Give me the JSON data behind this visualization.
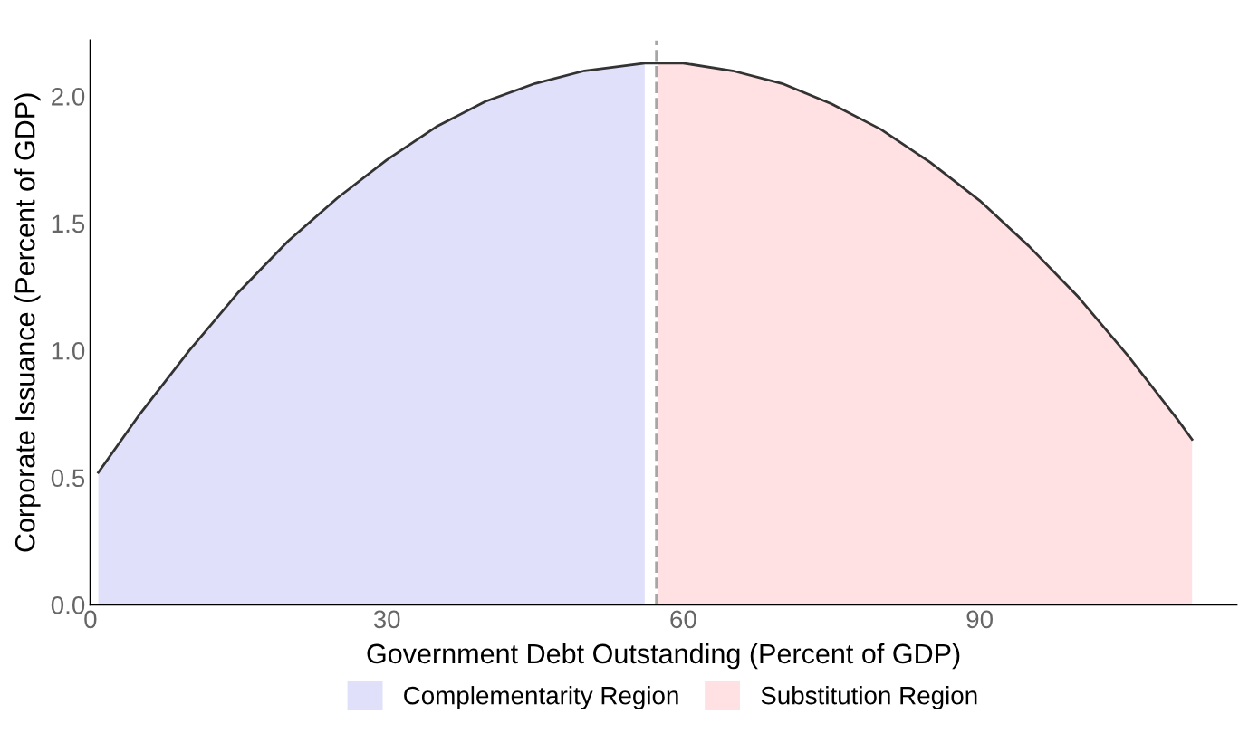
{
  "chart_data": {
    "type": "area",
    "xlabel": "Government Debt Outstanding (Percent of GDP)",
    "ylabel": "Corporate Issuance (Percent of GDP)",
    "series": [
      {
        "name": "Complementarity Region",
        "color": "#e0e0fb",
        "x": [
          0.8,
          5,
          10,
          15,
          20,
          25,
          30,
          35,
          40,
          45,
          50,
          56.1
        ],
        "values": [
          0.52,
          0.75,
          1.0,
          1.23,
          1.43,
          1.6,
          1.75,
          1.88,
          1.98,
          2.05,
          2.1,
          2.13
        ]
      },
      {
        "name": "Substitution Region",
        "color": "#ffe0e3",
        "x": [
          57.4,
          60,
          65,
          70,
          75,
          80,
          85,
          90,
          95,
          100,
          105,
          110,
          111.5
        ],
        "values": [
          2.13,
          2.13,
          2.1,
          2.05,
          1.97,
          1.87,
          1.74,
          1.59,
          1.41,
          1.21,
          0.98,
          0.73,
          0.65
        ]
      },
      {
        "color": "#333333",
        "type": "line",
        "x": [
          0.8,
          5,
          10,
          15,
          20,
          25,
          30,
          35,
          40,
          45,
          50,
          56.1,
          57.4,
          60,
          65,
          70,
          75,
          80,
          85,
          90,
          95,
          100,
          105,
          110,
          111.5
        ],
        "values": [
          0.52,
          0.75,
          1.0,
          1.23,
          1.43,
          1.6,
          1.75,
          1.88,
          1.98,
          2.05,
          2.1,
          2.13,
          2.13,
          2.13,
          2.1,
          2.05,
          1.97,
          1.87,
          1.74,
          1.59,
          1.41,
          1.21,
          0.98,
          0.73,
          0.65
        ]
      }
    ],
    "xlim": [
      0,
      116
    ],
    "ylim": [
      0,
      2.22
    ],
    "xticks": [
      0,
      30,
      60,
      90
    ],
    "yticks": [
      {
        "value": 0,
        "label": "0.0"
      },
      {
        "value": 0.5,
        "label": "0.5"
      },
      {
        "value": 1,
        "label": "1.0"
      },
      {
        "value": 1.5,
        "label": "1.5"
      },
      {
        "value": 2,
        "label": "2.0"
      }
    ],
    "ref_lines": [
      {
        "axis": "x",
        "value": 57.3,
        "color": "#a6a6a6",
        "line_style": "dashed"
      }
    ],
    "grid": false,
    "legend": "bottom",
    "line_style": "solid"
  }
}
